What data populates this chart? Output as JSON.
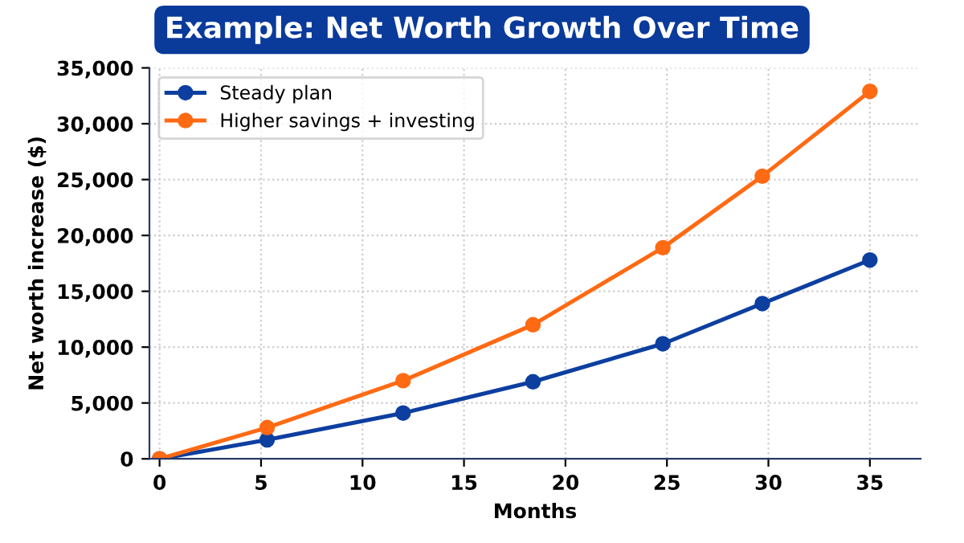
{
  "chart_data": {
    "type": "line",
    "title": "Example: Net Worth Growth Over Time",
    "xlabel": "Months",
    "ylabel": "Net worth increase ($)",
    "x": [
      0,
      5.3,
      12,
      18.4,
      24.8,
      29.7,
      35
    ],
    "series": [
      {
        "name": "Steady plan",
        "color": "#0d3fa0",
        "values": [
          0,
          1700,
          4100,
          6900,
          10300,
          13900,
          17800
        ]
      },
      {
        "name": "Higher savings + investing",
        "color": "#ff6a13",
        "values": [
          0,
          2800,
          7000,
          12000,
          18900,
          25300,
          32900
        ]
      }
    ],
    "xlim": [
      -0.5,
      37.5
    ],
    "xticks": [
      0,
      5,
      10,
      15,
      20,
      25,
      30,
      35
    ],
    "ylim": [
      0,
      35000
    ],
    "yticks": [
      {
        "value": 0,
        "label": "0"
      },
      {
        "value": 5000,
        "label": "5,000"
      },
      {
        "value": 10000,
        "label": "10,000"
      },
      {
        "value": 15000,
        "label": "15,000"
      },
      {
        "value": 20000,
        "label": "20,000"
      },
      {
        "value": 25000,
        "label": "25,000"
      },
      {
        "value": 30000,
        "label": "30,000"
      },
      {
        "value": 35000,
        "label": "35,000"
      }
    ],
    "grid": true,
    "legend": "top left",
    "marker": "circle",
    "line_style": "solid"
  }
}
